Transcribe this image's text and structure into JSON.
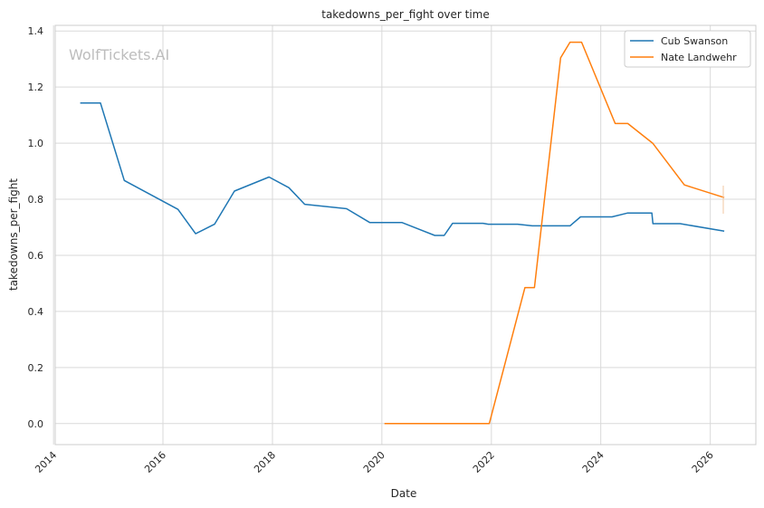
{
  "watermark": "WolfTickets.AI",
  "chart_data": {
    "type": "line",
    "title": "takedowns_per_fight over time",
    "xlabel": "Date",
    "ylabel": "takedowns_per_fight",
    "xlim": [
      "2014-01-12",
      "2026-11-01"
    ],
    "ylim": [
      -0.075,
      1.42
    ],
    "x_ticks": [
      "2014",
      "2016",
      "2018",
      "2020",
      "2022",
      "2024",
      "2026"
    ],
    "y_ticks": [
      "0.0",
      "0.2",
      "0.4",
      "0.6",
      "0.8",
      "1.0",
      "1.2",
      "1.4"
    ],
    "grid": true,
    "legend": "top-right",
    "series": [
      {
        "name": "Cub Swanson",
        "color": "#1f77b4",
        "points": [
          [
            "2014-06-28",
            1.143
          ],
          [
            "2014-11-10",
            1.143
          ],
          [
            "2015-04-18",
            0.867
          ],
          [
            "2016-04-10",
            0.764
          ],
          [
            "2016-08-06",
            0.677
          ],
          [
            "2016-12-10",
            0.711
          ],
          [
            "2017-04-22",
            0.829
          ],
          [
            "2017-12-09",
            0.879
          ],
          [
            "2018-04-21",
            0.841
          ],
          [
            "2018-08-04",
            0.782
          ],
          [
            "2019-05-11",
            0.766
          ],
          [
            "2019-10-12",
            0.717
          ],
          [
            "2020-05-13",
            0.717
          ],
          [
            "2020-12-19",
            0.671
          ],
          [
            "2021-02-20",
            0.671
          ],
          [
            "2021-04-17",
            0.714
          ],
          [
            "2021-11-06",
            0.714
          ],
          [
            "2021-12-11",
            0.711
          ],
          [
            "2022-06-25",
            0.711
          ],
          [
            "2022-10-01",
            0.705
          ],
          [
            "2023-06-10",
            0.705
          ],
          [
            "2023-08-19",
            0.737
          ],
          [
            "2024-03-16",
            0.737
          ],
          [
            "2024-06-29",
            0.751
          ],
          [
            "2024-12-07",
            0.751
          ],
          [
            "2024-12-14",
            0.713
          ],
          [
            "2025-06-14",
            0.713
          ],
          [
            "2026-04-04",
            0.686
          ]
        ]
      },
      {
        "name": "Nate Landwehr",
        "color": "#ff7f0e",
        "points": [
          [
            "2020-01-18",
            0.0
          ],
          [
            "2020-12-19",
            0.0
          ],
          [
            "2021-12-18",
            0.0
          ],
          [
            "2022-08-13",
            0.485
          ],
          [
            "2022-10-15",
            0.485
          ],
          [
            "2023-04-08",
            1.304
          ],
          [
            "2023-06-10",
            1.36
          ],
          [
            "2023-08-26",
            1.36
          ],
          [
            "2024-04-06",
            1.07
          ],
          [
            "2024-06-29",
            1.07
          ],
          [
            "2024-12-14",
            0.999
          ],
          [
            "2025-07-12",
            0.851
          ],
          [
            "2026-04-04",
            0.806
          ]
        ]
      }
    ]
  }
}
